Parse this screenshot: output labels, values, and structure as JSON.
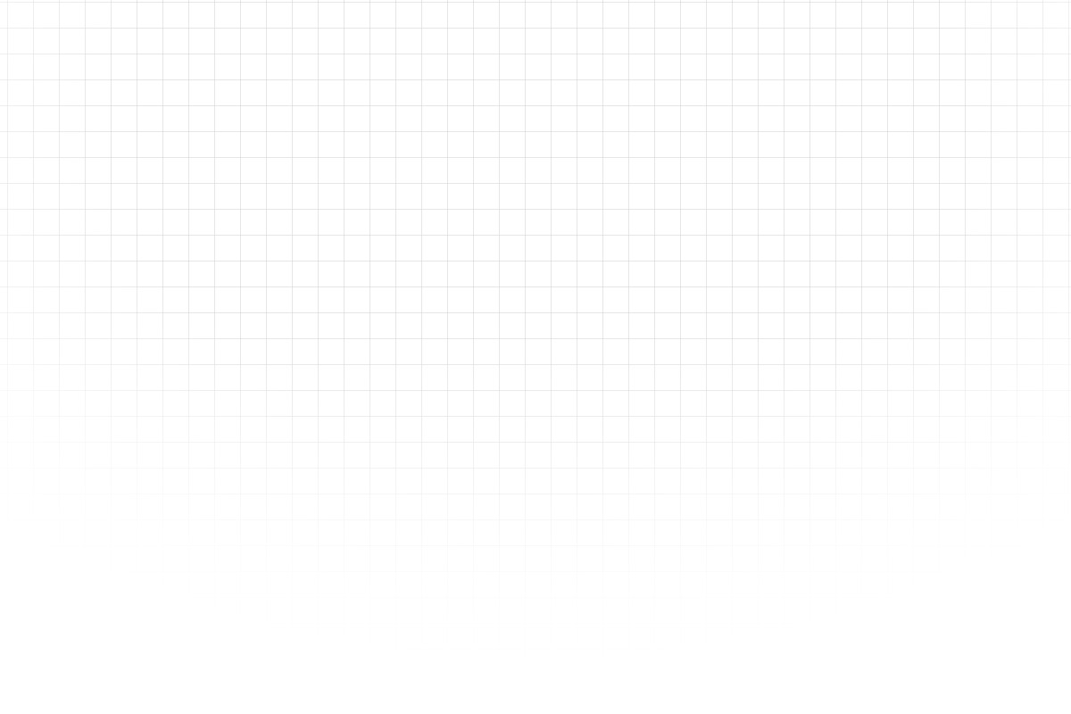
{
  "background": {
    "pattern": "grid",
    "base_color": "#ffffff",
    "line_color": "#d2d2d2",
    "fade": "bottom"
  }
}
